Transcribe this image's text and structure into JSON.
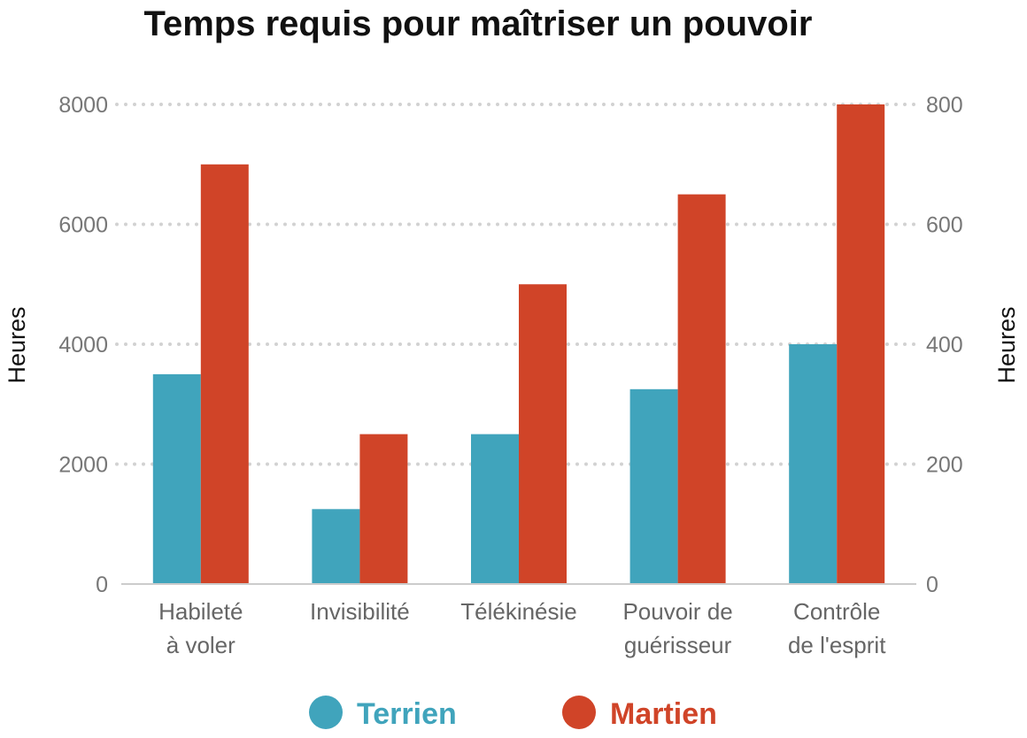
{
  "chart_data": {
    "type": "bar",
    "title": "Temps requis pour maîtriser un pouvoir",
    "categories": [
      [
        "Habileté",
        "à voler"
      ],
      [
        "Invisibilité"
      ],
      [
        "Télékinésie"
      ],
      [
        "Pouvoir de",
        "guérisseur"
      ],
      [
        "Contrôle",
        "de l'esprit"
      ]
    ],
    "series": [
      {
        "name": "Terrien",
        "color": "#40a4bc",
        "axis": "left",
        "values": [
          3500,
          1250,
          2500,
          3250,
          4000
        ]
      },
      {
        "name": "Martien",
        "color": "#d04428",
        "axis": "right",
        "values": [
          700,
          250,
          500,
          650,
          800
        ]
      }
    ],
    "y_left": {
      "label": "Heures",
      "range": [
        0,
        8000
      ],
      "ticks": [
        "0",
        "2000",
        "4000",
        "6000",
        "8000"
      ]
    },
    "y_right": {
      "label": "Heures",
      "range": [
        0,
        800
      ],
      "ticks": [
        "0",
        "200",
        "400",
        "600",
        "800"
      ]
    },
    "grid": "horizontal-dotted",
    "legend": "bottom-center"
  }
}
